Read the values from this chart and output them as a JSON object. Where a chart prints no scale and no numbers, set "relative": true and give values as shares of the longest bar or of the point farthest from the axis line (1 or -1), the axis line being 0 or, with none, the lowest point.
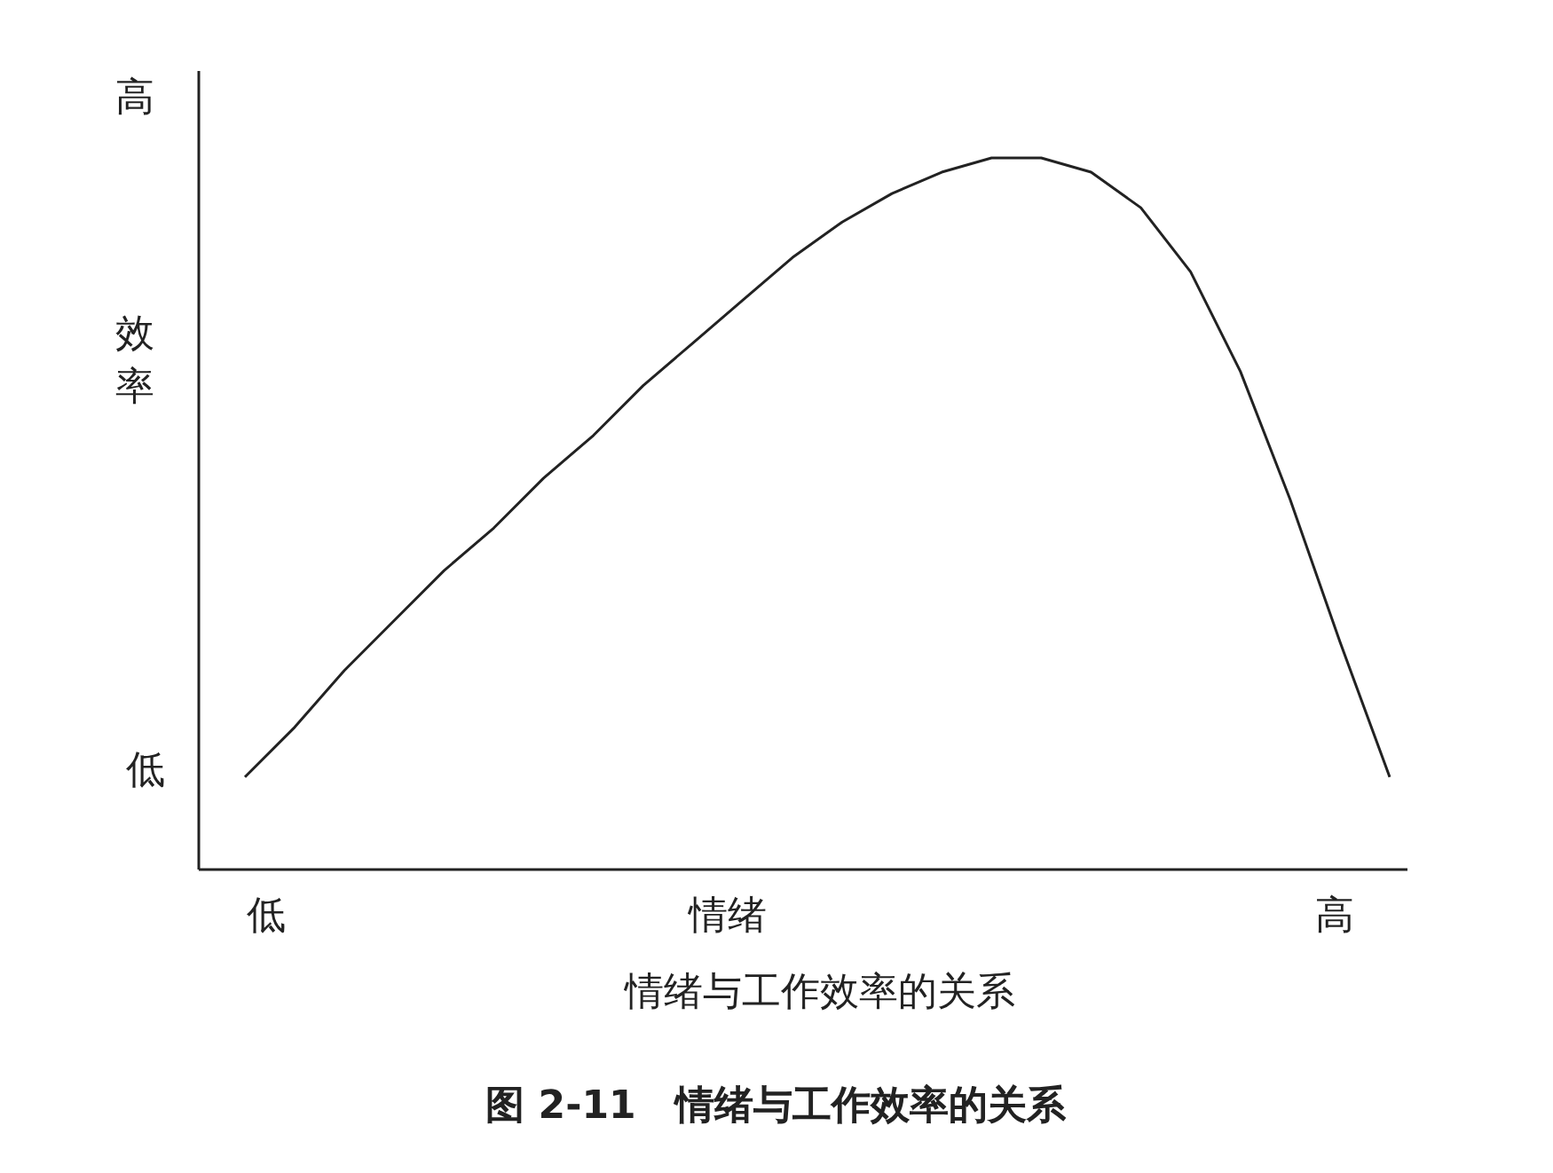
{
  "chart_data": {
    "type": "line",
    "relative": true,
    "title": "图 2-11　情绪与工作效率的关系",
    "xlabel": "情绪",
    "ylabel": "效率",
    "annotations": [
      "低",
      "高",
      "低",
      "高",
      "情绪与工作效率的关系"
    ],
    "categories": [
      null,
      null,
      null,
      null,
      null,
      null,
      null,
      null,
      null,
      null,
      null,
      null,
      null,
      null,
      null,
      null,
      null,
      null,
      null,
      null,
      null,
      null,
      null,
      null
    ],
    "series": [
      {
        "color": "#222222",
        "values": [
          0.13,
          0.2,
          0.28,
          0.35,
          0.42,
          0.48,
          0.55,
          0.61,
          0.68,
          0.74,
          0.8,
          0.86,
          0.91,
          0.95,
          0.98,
          1.0,
          1.0,
          0.98,
          0.93,
          0.84,
          0.7,
          0.52,
          0.32,
          0.13
        ]
      }
    ],
    "marker": "none",
    "line_style": "solid"
  }
}
